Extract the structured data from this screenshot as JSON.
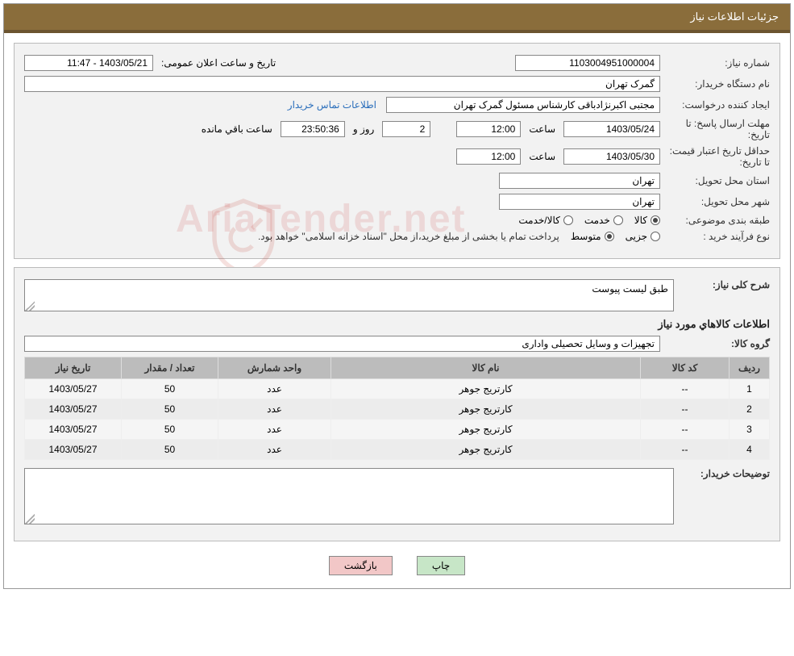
{
  "header": {
    "title": "جزئیات اطلاعات نیاز"
  },
  "panel1": {
    "need_number_label": "شماره نیاز:",
    "need_number": "1103004951000004",
    "announce_label": "تاریخ و ساعت اعلان عمومی:",
    "announce_value": "1403/05/21 - 11:47",
    "buyer_org_label": "نام دستگاه خریدار:",
    "buyer_org": "گمرک تهران",
    "requester_label": "ایجاد کننده درخواست:",
    "requester": "مجتبی اکبرنژادباقی کارشناس مسئول گمرک تهران",
    "contact_link": "اطلاعات تماس خریدار",
    "deadline_label": "مهلت ارسال پاسخ: تا تاریخ:",
    "deadline_date": "1403/05/24",
    "time_label": "ساعت",
    "deadline_time": "12:00",
    "days_val": "2",
    "days_label": "روز و",
    "countdown": "23:50:36",
    "remain_label": "ساعت باقي مانده",
    "validity_label": "حداقل تاریخ اعتبار قیمت: تا تاریخ:",
    "validity_date": "1403/05/30",
    "validity_time": "12:00",
    "province_label": "استان محل تحویل:",
    "province": "تهران",
    "city_label": "شهر محل تحویل:",
    "city": "تهران",
    "category_label": "طبقه بندی موضوعی:",
    "cat_opts": {
      "goods": "کالا",
      "service": "خدمت",
      "both": "کالا/خدمت"
    },
    "process_label": "نوع فرآیند خرید :",
    "proc_opts": {
      "minor": "جزیی",
      "medium": "متوسط"
    },
    "process_note": "پرداخت تمام یا بخشی از مبلغ خرید،از محل \"اسناد خزانه اسلامی\" خواهد بود."
  },
  "panel2": {
    "desc_label": "شرح کلی نیاز:",
    "desc_text": "طبق لیست پیوست",
    "goods_title": "اطلاعات کالاهاي مورد نياز",
    "group_label": "گروه کالا:",
    "group_value": "تجهیزات و وسایل تحصیلی واداری",
    "table": {
      "headers": [
        "ردیف",
        "کد کالا",
        "نام کالا",
        "واحد شمارش",
        "تعداد / مقدار",
        "تاریخ نیاز"
      ],
      "rows": [
        [
          "1",
          "--",
          "کارتریج جوهر",
          "عدد",
          "50",
          "1403/05/27"
        ],
        [
          "2",
          "--",
          "کارتریج جوهر",
          "عدد",
          "50",
          "1403/05/27"
        ],
        [
          "3",
          "--",
          "کارتریج جوهر",
          "عدد",
          "50",
          "1403/05/27"
        ],
        [
          "4",
          "--",
          "کارتریج جوهر",
          "عدد",
          "50",
          "1403/05/27"
        ]
      ]
    },
    "buyer_notes_label": "توضیحات خریدار:"
  },
  "footer": {
    "print": "چاپ",
    "back": "بازگشت"
  },
  "watermark": "AriaTender.net",
  "colors": {
    "header_bg": "#8a6d3b",
    "header_border": "#6b5430",
    "panel_bg": "#f2f2f2",
    "th_bg": "#bcbcbc",
    "link": "#2a6ebb",
    "btn_print": "#c7e6c7",
    "btn_back": "#f2c7c7"
  }
}
